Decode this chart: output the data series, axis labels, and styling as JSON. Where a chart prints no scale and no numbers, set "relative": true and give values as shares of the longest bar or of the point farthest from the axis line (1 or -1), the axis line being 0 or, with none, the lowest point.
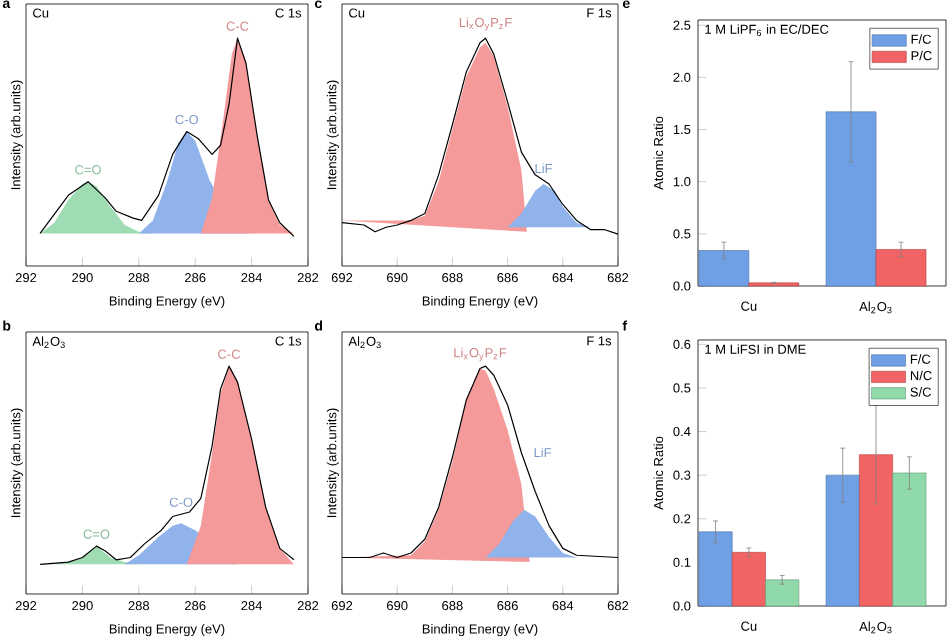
{
  "chart_data": [
    {
      "type": "area",
      "relative": true,
      "tick_labels": "x",
      "xlabel": "Binding Energy (eV)",
      "ylabel": "Intensity (arb.units)",
      "xlim": [
        292,
        282
      ],
      "xticks": [
        292,
        290,
        288,
        286,
        284,
        282
      ],
      "annotations": [
        "a",
        "Cu",
        "C 1s"
      ],
      "series": [
        {
          "type": "area",
          "name": "C=O",
          "color": "#9fdcb4",
          "x": [
            291.5,
            291,
            290.5,
            290,
            289.8,
            289.5,
            289,
            288.5,
            288,
            287.5
          ],
          "values": [
            0.143,
            0.19,
            0.29,
            0.36,
            0.37,
            0.35,
            0.26,
            0.18,
            0.15,
            0.143
          ]
        },
        {
          "type": "area",
          "name": "C-O",
          "color": "#8fb3ea",
          "x": [
            288,
            287.5,
            287,
            286.6,
            286.3,
            286,
            285.5,
            285,
            284.5,
            284
          ],
          "values": [
            0.143,
            0.2,
            0.37,
            0.54,
            0.59,
            0.55,
            0.38,
            null,
            0.15,
            0.143
          ]
        },
        {
          "type": "area",
          "name": "C-C",
          "color": "#f59a9a",
          "x": [
            285.8,
            285.4,
            285,
            284.7,
            284.5,
            284.2,
            283.8,
            283.4,
            283,
            282.5
          ],
          "values": [
            0.143,
            0.3,
            0.65,
            0.93,
            1.0,
            0.9,
            0.57,
            0.29,
            0.18,
            0.143
          ]
        },
        {
          "type": "line",
          "color": "#000000",
          "x": [
            291.5,
            290.5,
            289.8,
            289.2,
            288.8,
            288.2,
            287.9,
            287.3,
            286.8,
            286.3,
            285.9,
            285.4,
            285.1,
            284.8,
            284.5,
            284.2,
            283.8,
            283.4,
            283,
            282.5
          ],
          "values": [
            0.143,
            0.31,
            0.37,
            0.3,
            0.24,
            0.21,
            0.2,
            0.31,
            0.49,
            0.59,
            0.56,
            0.49,
            0.53,
            0.71,
            1.0,
            0.89,
            0.57,
            0.29,
            0.19,
            0.13
          ]
        }
      ]
    },
    {
      "type": "area",
      "relative": true,
      "tick_labels": "x",
      "xlabel": "Binding Energy (eV)",
      "ylabel": "Intensity (arb.units)",
      "xlim": [
        692,
        682
      ],
      "xticks": [
        692,
        690,
        688,
        686,
        684,
        682
      ],
      "annotations": [
        "c",
        "Cu",
        "F 1s"
      ],
      "series": [
        {
          "type": "area",
          "name": "Li$_{x}$O$_{y}$P$_{z}$F",
          "color": "#f59a9a",
          "x": [
            692,
            689.5,
            689,
            688.5,
            688,
            687.5,
            687,
            686.8,
            686.5,
            686,
            685.5,
            685.3
          ],
          "values": [
            0.2,
            0.2,
            0.22,
            0.37,
            0.6,
            0.83,
            0.96,
            0.98,
            0.92,
            0.7,
            0.42,
            0.15
          ]
        },
        {
          "type": "area",
          "name": "LiF",
          "color": "#8fb3ea",
          "x": [
            686,
            685.5,
            685,
            684.7,
            684.3,
            684,
            683.5,
            683
          ],
          "values": [
            0.17,
            0.23,
            0.33,
            0.36,
            0.33,
            0.26,
            0.19,
            0.17
          ]
        },
        {
          "type": "line",
          "color": "#000000",
          "x": [
            692,
            691.2,
            690.8,
            690.4,
            690,
            689.5,
            689,
            688.5,
            688,
            687.5,
            687,
            686.8,
            686.5,
            686,
            685.5,
            685,
            684.5,
            684,
            683.5,
            683,
            682.5,
            682
          ],
          "values": [
            0.19,
            0.18,
            0.15,
            0.17,
            0.18,
            0.2,
            0.23,
            0.4,
            0.62,
            0.85,
            0.98,
            1.0,
            0.93,
            0.72,
            0.5,
            0.4,
            0.36,
            0.27,
            0.2,
            0.16,
            0.16,
            0.14
          ]
        }
      ]
    },
    {
      "type": "bar",
      "ylabel": "Atomic Ratio",
      "categories": [
        "Cu",
        "Al$_{2}$O$_{3}$"
      ],
      "ylim": [
        0,
        2.55
      ],
      "yticks": [
        {
          "value": 0,
          "label": "0.0"
        },
        0.5,
        {
          "value": 1,
          "label": "1.0"
        },
        1.5,
        {
          "value": 2,
          "label": "2.0"
        },
        2.5
      ],
      "legend": "top right",
      "annotations": [
        "e",
        "1 M LiPF$_{6}$ in EC/DEC"
      ],
      "series": [
        {
          "name": "F/C",
          "color": "#6fa0e6",
          "values": [
            0.34,
            1.67
          ],
          "errors": [
            0.08,
            0.48
          ]
        },
        {
          "name": "P/C",
          "color": "#f26363",
          "values": [
            0.03,
            0.35
          ],
          "errors": [
            0.005,
            0.07
          ]
        }
      ]
    },
    {
      "type": "area",
      "relative": true,
      "tick_labels": "x",
      "xlabel": "Binding Energy (eV)",
      "ylabel": "Intensity (arb.units)",
      "xlim": [
        292,
        282
      ],
      "xticks": [
        292,
        290,
        288,
        286,
        284,
        282
      ],
      "annotations": [
        "b",
        "Al$_{2}$O$_{3}$",
        "C 1s"
      ],
      "series": [
        {
          "type": "area",
          "name": "C=O",
          "color": "#9fdcb4",
          "x": [
            291.5,
            290.5,
            290,
            289.5,
            289,
            288.5,
            288
          ],
          "values": [
            0.13,
            0.14,
            0.16,
            0.21,
            0.16,
            0.14,
            0.13
          ]
        },
        {
          "type": "area",
          "name": "C-O",
          "color": "#8fb3ea",
          "x": [
            288.5,
            288,
            287.3,
            286.8,
            286.5,
            286,
            285.5,
            285,
            284.5
          ],
          "values": [
            0.13,
            0.17,
            0.25,
            0.3,
            0.31,
            0.28,
            null,
            null,
            0.13
          ]
        },
        {
          "type": "area",
          "name": "C-C",
          "color": "#f59a9a",
          "x": [
            286.3,
            285.8,
            285.4,
            285.1,
            284.8,
            284.5,
            284,
            283.5,
            283,
            282.5
          ],
          "values": [
            0.13,
            0.3,
            0.62,
            0.88,
            1.0,
            0.93,
            0.68,
            0.38,
            0.2,
            0.13
          ]
        },
        {
          "type": "line",
          "color": "#000000",
          "x": [
            291.5,
            290.5,
            290,
            289.5,
            289.2,
            288.8,
            288.3,
            287.8,
            287.2,
            286.8,
            286.5,
            286.2,
            285.8,
            285.4,
            285.1,
            284.8,
            284.5,
            284,
            283.5,
            283,
            282.5
          ],
          "values": [
            0.13,
            0.14,
            0.16,
            0.21,
            0.19,
            0.15,
            0.16,
            0.22,
            0.28,
            0.34,
            0.35,
            0.36,
            0.42,
            0.65,
            0.9,
            1.0,
            0.93,
            0.68,
            0.38,
            0.2,
            0.15
          ]
        }
      ]
    },
    {
      "type": "area",
      "relative": true,
      "tick_labels": "x",
      "xlabel": "Binding Energy (eV)",
      "ylabel": "Intensity (arb.units)",
      "xlim": [
        692,
        682
      ],
      "xticks": [
        692,
        690,
        688,
        686,
        684,
        682
      ],
      "annotations": [
        "d",
        "Al$_{2}$O$_{3}$",
        "F 1s"
      ],
      "series": [
        {
          "type": "area",
          "name": "Li$_{x}$O$_{y}$P$_{z}$F",
          "color": "#f59a9a",
          "x": [
            692,
            689.5,
            689,
            688.5,
            688,
            687.5,
            687,
            686.8,
            686.5,
            686,
            685.5,
            685.2
          ],
          "values": [
            0.16,
            0.17,
            0.23,
            0.37,
            0.58,
            0.85,
            0.99,
            0.98,
            0.9,
            0.72,
            0.48,
            0.14
          ]
        },
        {
          "type": "area",
          "name": "LiF",
          "color": "#8fb3ea",
          "x": [
            686.8,
            686.3,
            685.8,
            685.4,
            685,
            684.5,
            684,
            683.5
          ],
          "values": [
            0.16,
            0.22,
            0.32,
            0.37,
            0.34,
            0.25,
            0.18,
            0.16
          ]
        },
        {
          "type": "line",
          "color": "#000000",
          "x": [
            692,
            691,
            690.5,
            690,
            689.5,
            689,
            688.5,
            688,
            687.5,
            687,
            686.8,
            686.5,
            686,
            685.5,
            685,
            684.5,
            684,
            683.5,
            682
          ],
          "values": [
            0.16,
            0.16,
            0.18,
            0.16,
            0.18,
            0.24,
            0.38,
            0.6,
            0.85,
            0.99,
            1.0,
            0.96,
            0.83,
            0.62,
            0.45,
            0.3,
            0.2,
            0.17,
            0.16
          ]
        }
      ]
    },
    {
      "type": "bar",
      "ylabel": "Atomic Ratio",
      "categories": [
        "Cu",
        "Al$_{2}$O$_{3}$"
      ],
      "ylim": [
        0,
        0.61
      ],
      "yticks": [
        {
          "value": 0,
          "label": "0.0"
        },
        0.1,
        0.2,
        0.3,
        0.4,
        0.5,
        0.6
      ],
      "legend": "top right",
      "annotations": [
        "f",
        "1 M LiFSI in DME"
      ],
      "series": [
        {
          "name": "F/C",
          "color": "#6fa0e6",
          "values": [
            0.17,
            0.3
          ],
          "errors": [
            0.025,
            0.062
          ]
        },
        {
          "name": "N/C",
          "color": "#f26363",
          "values": [
            0.123,
            0.347
          ],
          "errors": [
            0.01,
            0.113
          ]
        },
        {
          "name": "S/C",
          "color": "#8fd9aa",
          "values": [
            0.06,
            0.305
          ],
          "errors": [
            0.01,
            0.037
          ]
        }
      ]
    }
  ]
}
